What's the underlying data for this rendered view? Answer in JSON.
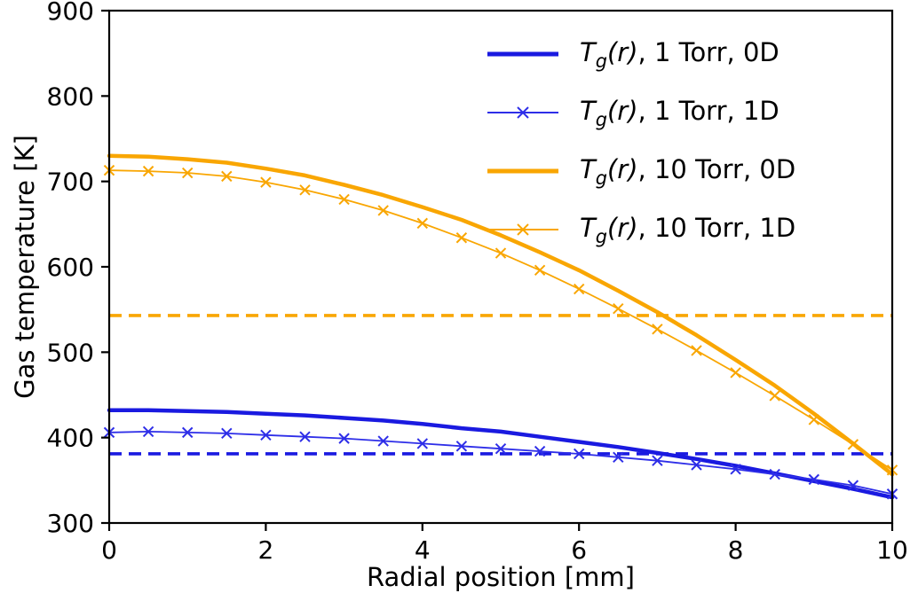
{
  "chart_data": {
    "type": "line",
    "title": "",
    "xlabel": "Radial position [mm]",
    "ylabel": "Gas temperature [K]",
    "xlim": [
      0,
      10
    ],
    "ylim": [
      300,
      900
    ],
    "xticks": [
      0,
      2,
      4,
      6,
      8,
      10
    ],
    "yticks": [
      300,
      400,
      500,
      600,
      700,
      800,
      900
    ],
    "grid": false,
    "legend_position": "upper right",
    "x": [
      0,
      0.5,
      1,
      1.5,
      2,
      2.5,
      3,
      3.5,
      4,
      4.5,
      5,
      5.5,
      6,
      6.5,
      7,
      7.5,
      8,
      8.5,
      9,
      9.5,
      10
    ],
    "series": [
      {
        "name": "Tg(r), 1 Torr, 0D",
        "color": "#1a1ae0",
        "width": 4.5,
        "marker": "none",
        "style": "solid",
        "values": [
          432,
          432,
          431,
          430,
          428,
          426,
          423,
          420,
          416,
          411,
          407,
          401,
          395,
          389,
          382,
          375,
          367,
          358,
          349,
          340,
          330
        ]
      },
      {
        "name": "Tg(r), 1 Torr, 1D",
        "color": "#2e2ee8",
        "width": 1.8,
        "marker": "x",
        "style": "solid",
        "values": [
          406,
          407,
          406,
          405,
          403,
          401,
          399,
          396,
          393,
          390,
          387,
          384,
          381,
          377,
          373,
          368,
          363,
          357,
          351,
          344,
          334
        ]
      },
      {
        "name": "Tg(r), 10 Torr, 0D",
        "color": "#F9A602",
        "width": 4.5,
        "marker": "none",
        "style": "solid",
        "values": [
          730,
          729,
          726,
          722,
          715,
          707,
          696,
          684,
          670,
          655,
          637,
          617,
          596,
          572,
          547,
          520,
          491,
          461,
          428,
          393,
          357
        ]
      },
      {
        "name": "Tg(r), 10 Torr, 1D",
        "color": "#F9A602",
        "width": 1.8,
        "marker": "x",
        "style": "solid",
        "values": [
          713,
          712,
          710,
          706,
          699,
          690,
          679,
          666,
          651,
          634,
          616,
          596,
          574,
          551,
          527,
          502,
          476,
          449,
          421,
          392,
          362
        ]
      }
    ],
    "hlines": [
      {
        "y": 381,
        "color": "#1a1ae0",
        "style": "dashed"
      },
      {
        "y": 543,
        "color": "#F9A602",
        "style": "dashed"
      }
    ]
  },
  "legend": {
    "items": [
      {
        "t": "T",
        "sub": "g",
        "args": "(r)",
        "suffix": ", 1 Torr, 0D",
        "series": 0
      },
      {
        "t": "T",
        "sub": "g",
        "args": "(r)",
        "suffix": ", 1 Torr, 1D",
        "series": 1
      },
      {
        "t": "T",
        "sub": "g",
        "args": "(r)",
        "suffix": ", 10 Torr, 0D",
        "series": 2
      },
      {
        "t": "T",
        "sub": "g",
        "args": "(r)",
        "suffix": ", 10 Torr, 1D",
        "series": 3
      }
    ]
  }
}
